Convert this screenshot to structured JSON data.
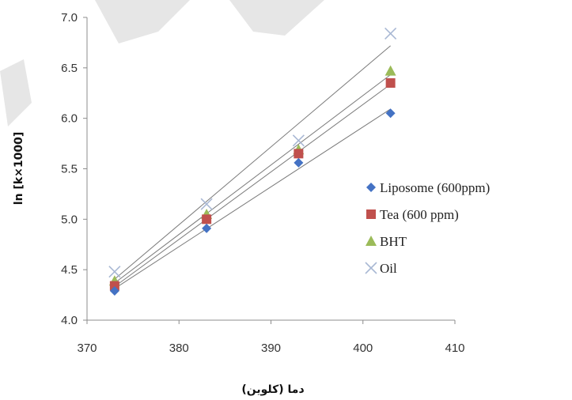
{
  "chart_data": {
    "type": "scatter",
    "title": "",
    "xlabel": "دما (کلوین)",
    "ylabel": "ln [k×1000]",
    "xlim": [
      370,
      410
    ],
    "ylim": [
      4.0,
      7.0
    ],
    "x_ticks": [
      370,
      380,
      390,
      400,
      410
    ],
    "y_ticks": [
      4.0,
      4.5,
      5.0,
      5.5,
      6.0,
      6.5,
      7.0
    ],
    "x_tick_labels": [
      "370",
      "380",
      "390",
      "400",
      "410"
    ],
    "y_tick_labels": [
      "4.0",
      "4.5",
      "5.0",
      "5.5",
      "6.0",
      "6.5",
      "7.0"
    ],
    "grid": false,
    "legend_position": "right",
    "trendlines": true,
    "series": [
      {
        "name": "Liposome (600ppm)",
        "marker": "diamond",
        "color": "#4472C4",
        "x": [
          373,
          383,
          393,
          403
        ],
        "y": [
          4.29,
          4.91,
          5.56,
          6.05
        ]
      },
      {
        "name": "Tea (600 ppm)",
        "marker": "square",
        "color": "#C0504D",
        "x": [
          373,
          383,
          393,
          403
        ],
        "y": [
          4.34,
          5.0,
          5.65,
          6.35
        ]
      },
      {
        "name": "BHT",
        "marker": "triangle",
        "color": "#9BBB59",
        "x": [
          373,
          383,
          393,
          403
        ],
        "y": [
          4.39,
          5.05,
          5.69,
          6.47
        ]
      },
      {
        "name": "Oil",
        "marker": "x",
        "color": "#A9B8D4",
        "x": [
          373,
          383,
          393,
          403
        ],
        "y": [
          4.48,
          5.15,
          5.78,
          6.84
        ]
      }
    ]
  }
}
